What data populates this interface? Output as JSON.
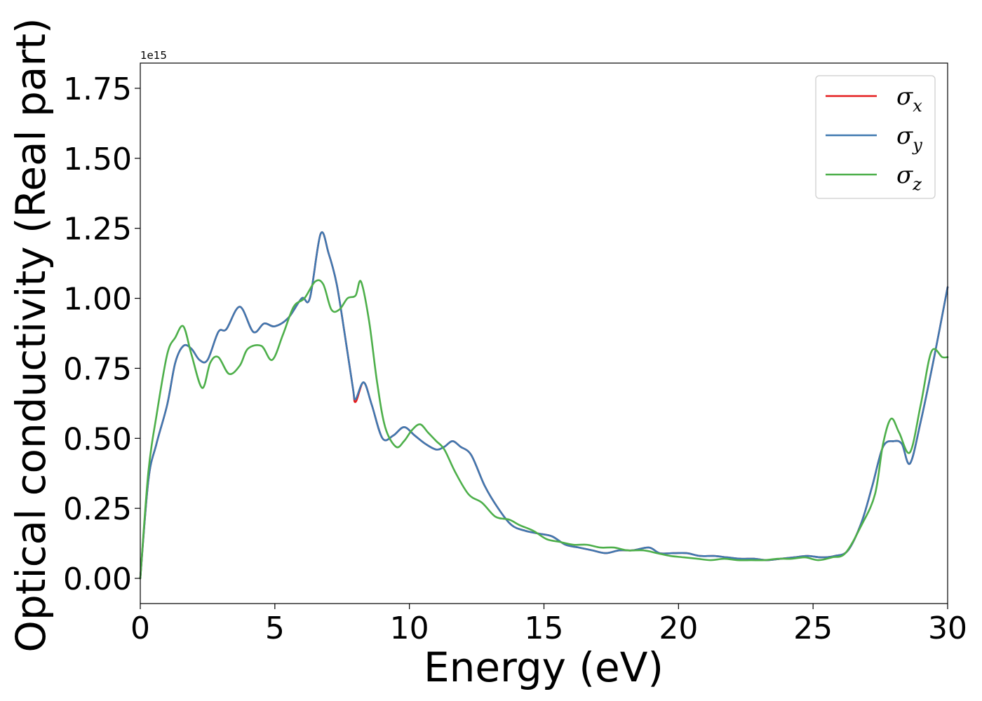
{
  "chart_data": {
    "type": "line",
    "xlabel": "Energy (eV)",
    "ylabel": "Optical conductivity (Real part)",
    "y_offset_label": "1e15",
    "xlim": [
      0,
      30
    ],
    "ylim": [
      -0.09,
      1.84
    ],
    "xticks": [
      0,
      5,
      10,
      15,
      20,
      25,
      30
    ],
    "xtick_labels": [
      "0",
      "5",
      "10",
      "15",
      "20",
      "25",
      "30"
    ],
    "yticks": [
      0.0,
      0.25,
      0.5,
      0.75,
      1.0,
      1.25,
      1.5,
      1.75
    ],
    "ytick_labels": [
      "0.00",
      "0.25",
      "0.50",
      "0.75",
      "1.00",
      "1.25",
      "1.50",
      "1.75"
    ],
    "grid": false,
    "legend_position": "top-right",
    "series": [
      {
        "name": "σx",
        "base": "σ",
        "sub": "x",
        "color": "#e41a1c",
        "x": [
          0,
          0.3,
          0.6,
          1.0,
          1.3,
          1.6,
          1.9,
          2.2,
          2.5,
          2.9,
          3.2,
          3.7,
          4.2,
          4.6,
          5.0,
          5.5,
          6.0,
          6.3,
          6.7,
          7.0,
          7.3,
          7.6,
          7.9,
          8.0,
          8.3,
          8.6,
          9.0,
          9.4,
          9.8,
          10.2,
          10.6,
          11.0,
          11.3,
          11.6,
          11.9,
          12.3,
          12.8,
          13.3,
          13.8,
          14.3,
          14.8,
          15.3,
          15.8,
          16.3,
          16.8,
          17.3,
          17.8,
          18.3,
          18.9,
          19.3,
          19.8,
          20.3,
          20.8,
          21.3,
          21.8,
          22.3,
          22.8,
          23.3,
          23.8,
          24.3,
          24.8,
          25.3,
          25.8,
          26.3,
          26.8,
          27.2,
          27.6,
          28.0,
          28.3,
          28.6,
          29.0,
          29.5,
          30.0
        ],
        "y": [
          0,
          0.35,
          0.48,
          0.62,
          0.77,
          0.83,
          0.82,
          0.78,
          0.78,
          0.88,
          0.89,
          0.97,
          0.88,
          0.91,
          0.9,
          0.93,
          1.0,
          1.0,
          1.23,
          1.16,
          1.05,
          0.87,
          0.68,
          0.63,
          0.7,
          0.62,
          0.5,
          0.51,
          0.54,
          0.51,
          0.48,
          0.46,
          0.47,
          0.49,
          0.47,
          0.44,
          0.33,
          0.25,
          0.19,
          0.17,
          0.16,
          0.15,
          0.12,
          0.11,
          0.1,
          0.09,
          0.1,
          0.1,
          0.11,
          0.09,
          0.09,
          0.09,
          0.08,
          0.08,
          0.075,
          0.07,
          0.07,
          0.065,
          0.07,
          0.075,
          0.08,
          0.075,
          0.08,
          0.1,
          0.2,
          0.33,
          0.47,
          0.49,
          0.48,
          0.41,
          0.56,
          0.79,
          1.04
        ]
      },
      {
        "name": "σy",
        "base": "σ",
        "sub": "y",
        "color": "#3f78b0",
        "x": [
          0,
          0.3,
          0.6,
          1.0,
          1.3,
          1.6,
          1.9,
          2.2,
          2.5,
          2.9,
          3.2,
          3.7,
          4.2,
          4.6,
          5.0,
          5.5,
          6.0,
          6.3,
          6.7,
          7.0,
          7.3,
          7.6,
          7.9,
          8.0,
          8.3,
          8.6,
          9.0,
          9.4,
          9.8,
          10.2,
          10.6,
          11.0,
          11.3,
          11.6,
          11.9,
          12.3,
          12.8,
          13.3,
          13.8,
          14.3,
          14.8,
          15.3,
          15.8,
          16.3,
          16.8,
          17.3,
          17.8,
          18.3,
          18.9,
          19.3,
          19.8,
          20.3,
          20.8,
          21.3,
          21.8,
          22.3,
          22.8,
          23.3,
          23.8,
          24.3,
          24.8,
          25.3,
          25.8,
          26.3,
          26.8,
          27.2,
          27.6,
          28.0,
          28.3,
          28.6,
          29.0,
          29.5,
          30.0
        ],
        "y": [
          0,
          0.35,
          0.48,
          0.62,
          0.77,
          0.83,
          0.82,
          0.78,
          0.78,
          0.88,
          0.89,
          0.97,
          0.88,
          0.91,
          0.9,
          0.93,
          1.0,
          1.0,
          1.23,
          1.16,
          1.05,
          0.87,
          0.68,
          0.64,
          0.7,
          0.62,
          0.5,
          0.51,
          0.54,
          0.51,
          0.48,
          0.46,
          0.47,
          0.49,
          0.47,
          0.44,
          0.33,
          0.25,
          0.19,
          0.17,
          0.16,
          0.15,
          0.12,
          0.11,
          0.1,
          0.09,
          0.1,
          0.1,
          0.11,
          0.09,
          0.09,
          0.09,
          0.08,
          0.08,
          0.075,
          0.07,
          0.07,
          0.065,
          0.07,
          0.075,
          0.08,
          0.075,
          0.08,
          0.1,
          0.2,
          0.33,
          0.47,
          0.49,
          0.48,
          0.41,
          0.56,
          0.79,
          1.04
        ]
      },
      {
        "name": "σz",
        "base": "σ",
        "sub": "z",
        "color": "#4daf4a",
        "x": [
          0,
          0.3,
          0.6,
          1.0,
          1.3,
          1.6,
          1.9,
          2.3,
          2.6,
          2.9,
          3.3,
          3.7,
          4.0,
          4.5,
          4.9,
          5.3,
          5.7,
          6.1,
          6.5,
          6.8,
          7.1,
          7.4,
          7.7,
          8.0,
          8.2,
          8.5,
          8.8,
          9.1,
          9.5,
          9.8,
          10.1,
          10.4,
          10.7,
          11.0,
          11.3,
          11.7,
          12.2,
          12.7,
          13.2,
          13.7,
          14.1,
          14.6,
          15.1,
          15.6,
          16.1,
          16.6,
          17.1,
          17.6,
          18.1,
          18.7,
          19.2,
          19.7,
          20.2,
          20.7,
          21.2,
          21.7,
          22.2,
          22.7,
          23.2,
          23.7,
          24.2,
          24.7,
          25.2,
          25.7,
          26.2,
          26.8,
          27.3,
          27.6,
          27.9,
          28.2,
          28.6,
          29.0,
          29.4,
          29.8,
          30.0
        ],
        "y": [
          0,
          0.38,
          0.58,
          0.8,
          0.86,
          0.9,
          0.8,
          0.68,
          0.77,
          0.79,
          0.73,
          0.76,
          0.82,
          0.83,
          0.78,
          0.87,
          0.97,
          1.0,
          1.06,
          1.05,
          0.96,
          0.96,
          1.0,
          1.01,
          1.06,
          0.92,
          0.7,
          0.54,
          0.47,
          0.49,
          0.53,
          0.55,
          0.52,
          0.49,
          0.46,
          0.38,
          0.3,
          0.27,
          0.22,
          0.21,
          0.19,
          0.17,
          0.14,
          0.13,
          0.12,
          0.12,
          0.11,
          0.11,
          0.1,
          0.1,
          0.09,
          0.08,
          0.075,
          0.07,
          0.065,
          0.07,
          0.065,
          0.065,
          0.065,
          0.07,
          0.07,
          0.075,
          0.065,
          0.075,
          0.09,
          0.19,
          0.3,
          0.48,
          0.57,
          0.52,
          0.45,
          0.62,
          0.81,
          0.79,
          0.79
        ]
      }
    ]
  }
}
